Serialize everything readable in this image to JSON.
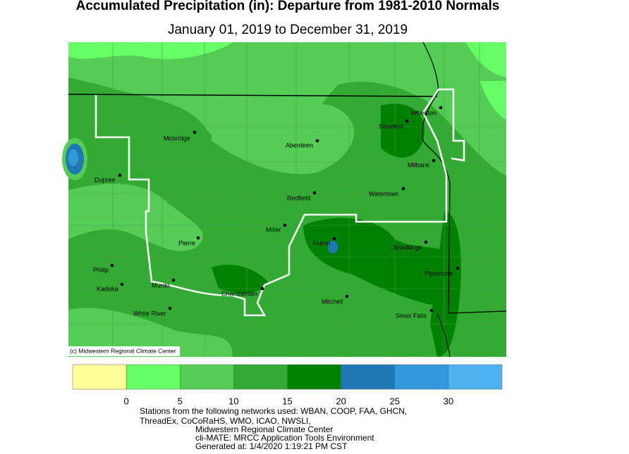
{
  "title": "Accumulated Precipitation (in): Departure from 1981-2010 Normals",
  "subtitle": "January 01, 2019 to December 31, 2019",
  "credit": "(c) Midwestern Regional Climate Center",
  "stations": [
    "Wheaton",
    "Sisseton",
    "Mobridge",
    "Aberdeen",
    "Milbank",
    "Dupree",
    "Watertown",
    "Redfield",
    "Miller",
    "Huron",
    "Brookings",
    "Pierre",
    "Philip",
    "Pipestone",
    "Kadoka",
    "Murdo",
    "Chamberlain",
    "Mitchell",
    "White River",
    "Sioux Falls"
  ],
  "legend": {
    "colors": [
      "#ffff99",
      "#66ff66",
      "#55cc55",
      "#33aa33",
      "#008000",
      "#1f78b4",
      "#3399dd",
      "#4db3f0"
    ],
    "ticks": [
      0,
      5,
      10,
      15,
      20,
      25,
      30
    ]
  },
  "footer": [
    "Stations from the following networks used: WBAN, COOP, FAA, GHCN,",
    "ThreadEx, CoCoRaHS, WMO, ICAO, NWSLI,",
    "Midwestern Regional Climate Center",
    "cli-MATE: MRCC Application Tools Environment",
    "Generated at: 1/4/2020 1:19:21 PM CST"
  ]
}
